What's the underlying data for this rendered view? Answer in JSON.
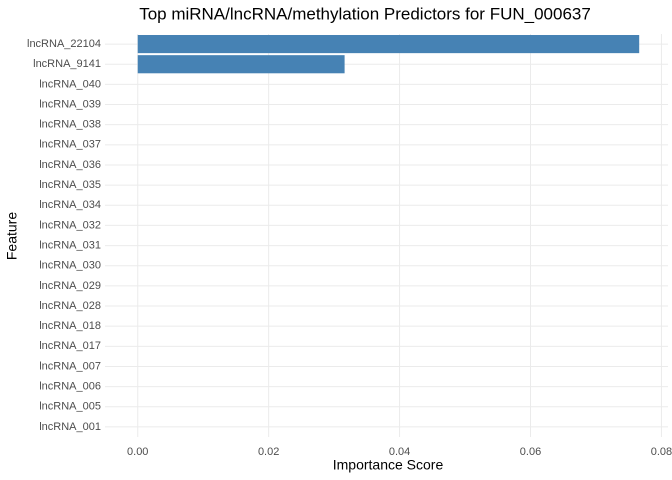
{
  "chart_data": {
    "type": "bar",
    "orientation": "horizontal",
    "title": "Top miRNA/lncRNA/methylation Predictors for FUN_000637",
    "x_label": "Importance Score",
    "y_label": "Feature",
    "categories": [
      "lncRNA_22104",
      "lncRNA_9141",
      "lncRNA_040",
      "lncRNA_039",
      "lncRNA_038",
      "lncRNA_037",
      "lncRNA_036",
      "lncRNA_035",
      "lncRNA_034",
      "lncRNA_032",
      "lncRNA_031",
      "lncRNA_030",
      "lncRNA_029",
      "lncRNA_028",
      "lncRNA_018",
      "lncRNA_017",
      "lncRNA_007",
      "lncRNA_006",
      "lncRNA_005",
      "lncRNA_001"
    ],
    "values": [
      0.0766,
      0.0316,
      0,
      0,
      0,
      0,
      0,
      0,
      0,
      0,
      0,
      0,
      0,
      0,
      0,
      0,
      0,
      0,
      0,
      0
    ],
    "color": "#4682b4",
    "xlim": [
      -0.005,
      0.081
    ],
    "xticks": [
      {
        "value": 0,
        "label": "0.00"
      },
      {
        "value": 0.02,
        "label": "0.02"
      },
      {
        "value": 0.04,
        "label": "0.04"
      },
      {
        "value": 0.06,
        "label": "0.06"
      },
      {
        "value": 0.08,
        "label": "0.08"
      }
    ],
    "grid": true
  }
}
